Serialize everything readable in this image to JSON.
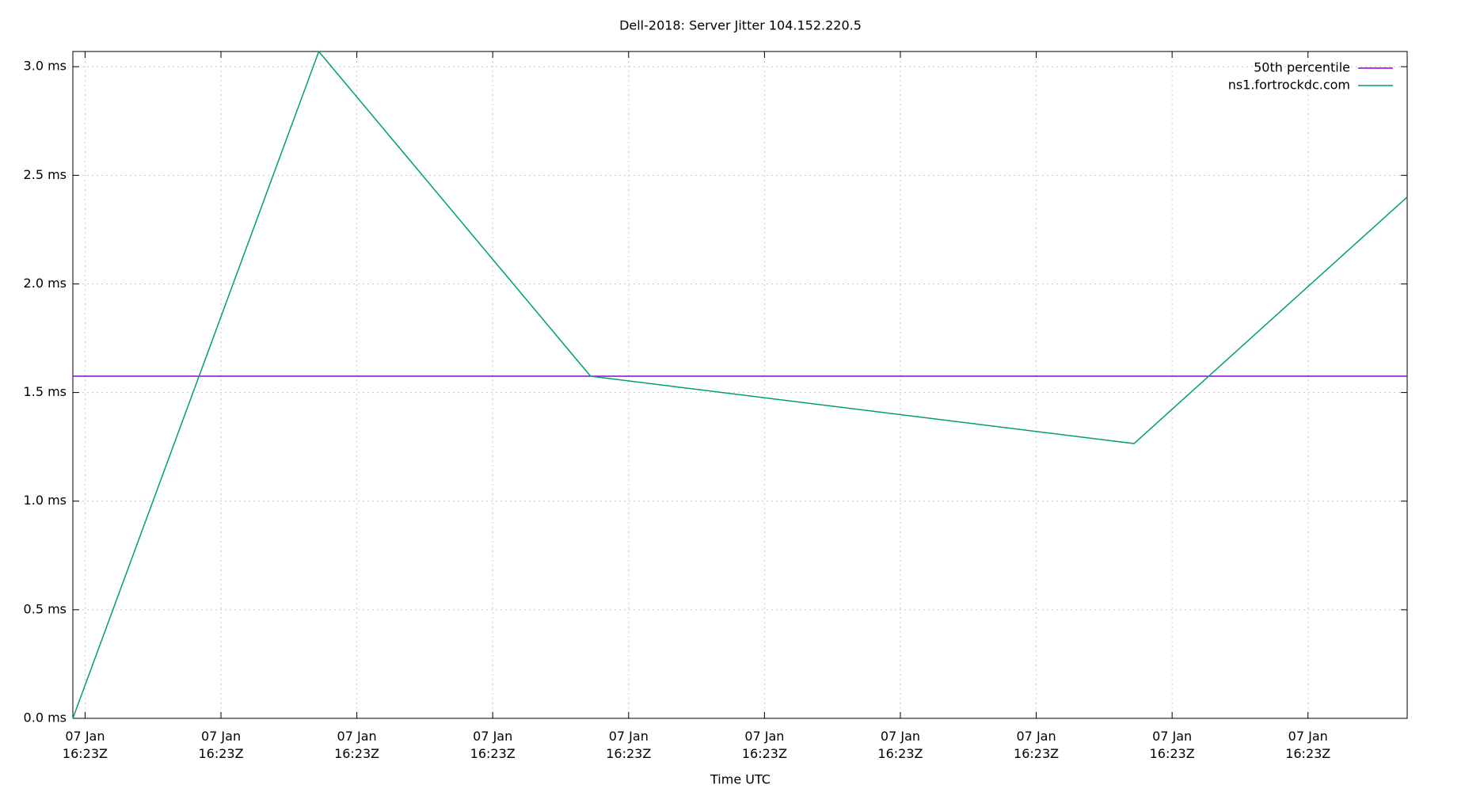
{
  "chart_data": {
    "type": "line",
    "title": "Dell-2018: Server Jitter 104.152.220.5",
    "x_label": "Time UTC",
    "x": [
      -0.09,
      1.72,
      3.72,
      7.72,
      9.73
    ],
    "series": [
      {
        "name": "ns1.fortrockdc.com",
        "color": "#009e73",
        "values": [
          0,
          3.07,
          1.575,
          1.265,
          2.4
        ]
      }
    ],
    "hlines": [
      {
        "name": "50th percentile",
        "color": "#9400d3",
        "value": 1.575
      }
    ],
    "xlim": [
      -0.09,
      9.73
    ],
    "xticks": [
      {
        "value": 0,
        "label": "07 Jan\n16:23Z"
      },
      {
        "value": 1,
        "label": "07 Jan\n16:23Z"
      },
      {
        "value": 2,
        "label": "07 Jan\n16:23Z"
      },
      {
        "value": 3,
        "label": "07 Jan\n16:23Z"
      },
      {
        "value": 4,
        "label": "07 Jan\n16:23Z"
      },
      {
        "value": 5,
        "label": "07 Jan\n16:23Z"
      },
      {
        "value": 6,
        "label": "07 Jan\n16:23Z"
      },
      {
        "value": 7,
        "label": "07 Jan\n16:23Z"
      },
      {
        "value": 8,
        "label": "07 Jan\n16:23Z"
      },
      {
        "value": 9,
        "label": "07 Jan\n16:23Z"
      }
    ],
    "ylim": [
      0,
      3.07
    ],
    "yticks": [
      {
        "value": 0,
        "label": "0.0 ms"
      },
      {
        "value": 0.5,
        "label": "0.5 ms"
      },
      {
        "value": 1,
        "label": "1.0 ms"
      },
      {
        "value": 1.5,
        "label": "1.5 ms"
      },
      {
        "value": 2,
        "label": "2.0 ms"
      },
      {
        "value": 2.5,
        "label": "2.5 ms"
      },
      {
        "value": 3,
        "label": "3.0 ms"
      }
    ],
    "grid": true,
    "legend": "top-right"
  }
}
